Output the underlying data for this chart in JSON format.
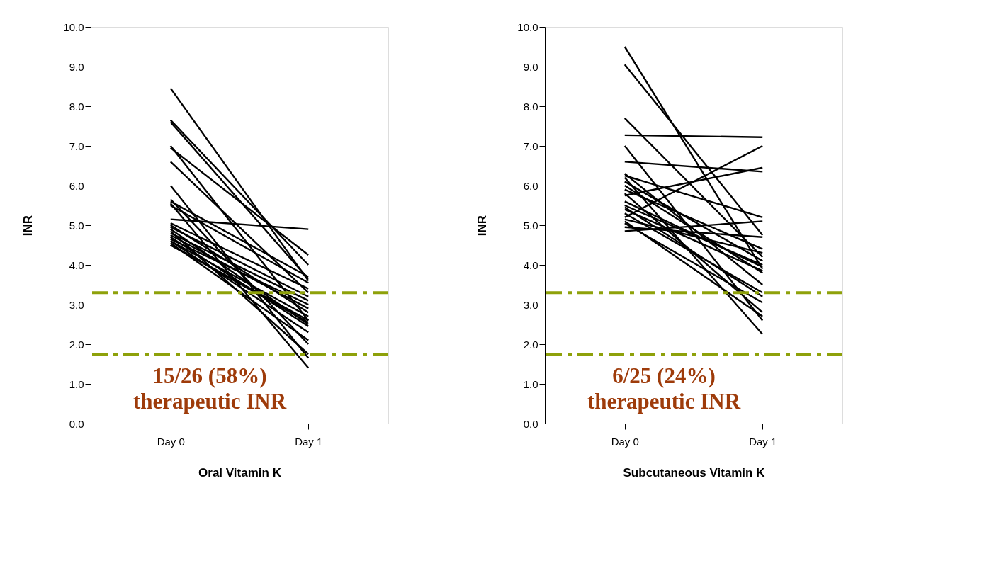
{
  "chart_data": [
    {
      "type": "line",
      "xlabel": "Oral Vitamin K",
      "ylabel": "INR",
      "categories": [
        "Day 0",
        "Day 1"
      ],
      "ylim": [
        0,
        10
      ],
      "yticks": [
        {
          "value": 0,
          "label": "0.0"
        },
        {
          "value": 1,
          "label": "1.0"
        },
        {
          "value": 2,
          "label": "2.0"
        },
        {
          "value": 3,
          "label": "3.0"
        },
        {
          "value": 4,
          "label": "4.0"
        },
        {
          "value": 5,
          "label": "5.0"
        },
        {
          "value": 6,
          "label": "6.0"
        },
        {
          "value": 7,
          "label": "7.0"
        },
        {
          "value": 8,
          "label": "8.0"
        },
        {
          "value": 9,
          "label": "9.0"
        },
        {
          "value": 10,
          "label": "10.0"
        }
      ],
      "grid": false,
      "legend": false,
      "marker": "none",
      "line_style": "solid",
      "ref_lines": [
        {
          "axis": "y",
          "value": 3.3,
          "color": "#8ea10a",
          "line_style": "dashdot"
        },
        {
          "axis": "y",
          "value": 1.75,
          "color": "#8ea10a",
          "line_style": "dashdot"
        }
      ],
      "annotations": [
        "15/26 (58%)\ntherapeutic INR"
      ],
      "series": [
        {
          "color": "#000000",
          "values": [
            8.45,
            3.6
          ]
        },
        {
          "color": "#000000",
          "values": [
            7.65,
            4.0
          ]
        },
        {
          "color": "#000000",
          "values": [
            7.6,
            3.65
          ]
        },
        {
          "color": "#000000",
          "values": [
            7.0,
            2.6
          ]
        },
        {
          "color": "#000000",
          "values": [
            6.95,
            4.25
          ]
        },
        {
          "color": "#000000",
          "values": [
            6.6,
            3.3
          ]
        },
        {
          "color": "#000000",
          "values": [
            6.0,
            1.65
          ]
        },
        {
          "color": "#000000",
          "values": [
            5.65,
            2.0
          ]
        },
        {
          "color": "#000000",
          "values": [
            5.6,
            3.7
          ]
        },
        {
          "color": "#000000",
          "values": [
            5.55,
            1.4
          ]
        },
        {
          "color": "#000000",
          "values": [
            5.5,
            3.55
          ]
        },
        {
          "color": "#000000",
          "values": [
            5.15,
            4.9
          ]
        },
        {
          "color": "#000000",
          "values": [
            5.05,
            3.4
          ]
        },
        {
          "color": "#000000",
          "values": [
            5.0,
            2.8
          ]
        },
        {
          "color": "#000000",
          "values": [
            4.95,
            3.2
          ]
        },
        {
          "color": "#000000",
          "values": [
            4.9,
            2.5
          ]
        },
        {
          "color": "#000000",
          "values": [
            4.85,
            1.75
          ]
        },
        {
          "color": "#000000",
          "values": [
            4.8,
            3.1
          ]
        },
        {
          "color": "#000000",
          "values": [
            4.75,
            2.9
          ]
        },
        {
          "color": "#000000",
          "values": [
            4.7,
            2.45
          ]
        },
        {
          "color": "#000000",
          "values": [
            4.65,
            3.0
          ]
        },
        {
          "color": "#000000",
          "values": [
            4.6,
            2.3
          ]
        },
        {
          "color": "#000000",
          "values": [
            4.6,
            2.7
          ]
        },
        {
          "color": "#000000",
          "values": [
            4.55,
            2.1
          ]
        },
        {
          "color": "#000000",
          "values": [
            4.5,
            2.55
          ]
        },
        {
          "color": "#000000",
          "values": [
            4.5,
            2.6
          ]
        }
      ]
    },
    {
      "type": "line",
      "xlabel": "Subcutaneous Vitamin K",
      "ylabel": "INR",
      "categories": [
        "Day 0",
        "Day 1"
      ],
      "ylim": [
        0,
        10
      ],
      "yticks": [
        {
          "value": 0,
          "label": "0.0"
        },
        {
          "value": 1,
          "label": "1.0"
        },
        {
          "value": 2,
          "label": "2.0"
        },
        {
          "value": 3,
          "label": "3.0"
        },
        {
          "value": 4,
          "label": "4.0"
        },
        {
          "value": 5,
          "label": "5.0"
        },
        {
          "value": 6,
          "label": "6.0"
        },
        {
          "value": 7,
          "label": "7.0"
        },
        {
          "value": 8,
          "label": "8.0"
        },
        {
          "value": 9,
          "label": "9.0"
        },
        {
          "value": 10,
          "label": "10.0"
        }
      ],
      "grid": false,
      "legend": false,
      "marker": "none",
      "line_style": "solid",
      "ref_lines": [
        {
          "axis": "y",
          "value": 3.3,
          "color": "#8ea10a",
          "line_style": "dashdot"
        },
        {
          "axis": "y",
          "value": 1.75,
          "color": "#8ea10a",
          "line_style": "dashdot"
        }
      ],
      "annotations": [
        "6/25 (24%)\ntherapeutic INR"
      ],
      "series": [
        {
          "color": "#000000",
          "values": [
            9.5,
            3.9
          ]
        },
        {
          "color": "#000000",
          "values": [
            9.05,
            4.75
          ]
        },
        {
          "color": "#000000",
          "values": [
            7.7,
            4.2
          ]
        },
        {
          "color": "#000000",
          "values": [
            7.27,
            7.22
          ]
        },
        {
          "color": "#000000",
          "values": [
            7.0,
            2.6
          ]
        },
        {
          "color": "#000000",
          "values": [
            6.6,
            6.35
          ]
        },
        {
          "color": "#000000",
          "values": [
            6.3,
            3.5
          ]
        },
        {
          "color": "#000000",
          "values": [
            6.25,
            5.2
          ]
        },
        {
          "color": "#000000",
          "values": [
            6.2,
            2.25
          ]
        },
        {
          "color": "#000000",
          "values": [
            6.1,
            4.1
          ]
        },
        {
          "color": "#000000",
          "values": [
            6.0,
            3.8
          ]
        },
        {
          "color": "#000000",
          "values": [
            5.9,
            4.4
          ]
        },
        {
          "color": "#000000",
          "values": [
            5.8,
            2.8
          ]
        },
        {
          "color": "#000000",
          "values": [
            5.75,
            6.45
          ]
        },
        {
          "color": "#000000",
          "values": [
            5.6,
            3.95
          ]
        },
        {
          "color": "#000000",
          "values": [
            5.5,
            4.0
          ]
        },
        {
          "color": "#000000",
          "values": [
            5.45,
            3.2
          ]
        },
        {
          "color": "#000000",
          "values": [
            5.4,
            3.85
          ]
        },
        {
          "color": "#000000",
          "values": [
            5.3,
            3.3
          ]
        },
        {
          "color": "#000000",
          "values": [
            5.2,
            7.0
          ]
        },
        {
          "color": "#000000",
          "values": [
            5.15,
            4.3
          ]
        },
        {
          "color": "#000000",
          "values": [
            5.1,
            2.7
          ]
        },
        {
          "color": "#000000",
          "values": [
            5.05,
            3.05
          ]
        },
        {
          "color": "#000000",
          "values": [
            4.95,
            4.7
          ]
        },
        {
          "color": "#000000",
          "values": [
            4.85,
            5.1
          ]
        }
      ]
    }
  ]
}
